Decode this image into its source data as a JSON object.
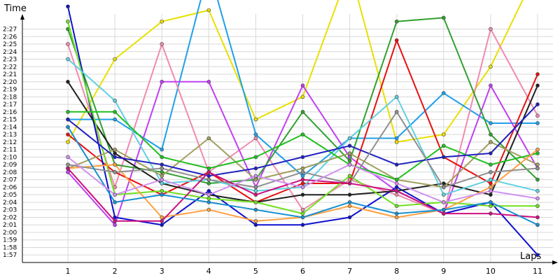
{
  "chart_data": {
    "type": "line",
    "xlabel": "Laps",
    "ylabel": "Time",
    "ylim": [
      "1:56",
      "2:29"
    ],
    "grid": true,
    "legend": "none",
    "x": [
      1,
      2,
      3,
      4,
      5,
      6,
      7,
      8,
      9,
      10,
      11
    ],
    "yticks": [
      "1:57",
      "1:58",
      "1:59",
      "2:00",
      "2:01",
      "2:02",
      "2:03",
      "2:04",
      "2:05",
      "2:06",
      "2:07",
      "2:08",
      "2:09",
      "2:10",
      "2:11",
      "2:12",
      "2:13",
      "2:14",
      "2:15",
      "2:16",
      "2:17",
      "2:18",
      "2:19",
      "2:20",
      "2:21",
      "2:22",
      "2:23",
      "2:24",
      "2:25",
      "2:26",
      "2:27"
    ],
    "series": [
      {
        "color": "#e8e000",
        "values": [
          "2:12",
          "2:23",
          "2:28",
          "2:29.5",
          "2:15",
          "2:18",
          "2:35",
          "2:12",
          "2:13",
          "2:22",
          "2:35"
        ]
      },
      {
        "color": "#20a0e8",
        "values": [
          "2:15",
          "2:15",
          "2:11",
          "2:35",
          "2:13",
          "2:07.5",
          "2:12.5",
          "2:12.5",
          "2:18.5",
          "2:14.5",
          "2:14.5"
        ]
      },
      {
        "color": "#f08ab0",
        "values": [
          "2:25",
          "2:06",
          "2:25",
          "2:08",
          "2:12.5",
          "2:03",
          "2:07",
          "2:05",
          "2:02.5",
          "2:27",
          "2:15.5"
        ]
      },
      {
        "color": "#c040f0",
        "values": [
          "2:08",
          "2:01",
          "2:20",
          "2:20",
          "2:06",
          "2:19.5",
          "2:10",
          "2:05.5",
          "2:02.5",
          "2:19.5",
          "2:08.5"
        ]
      },
      {
        "color": "#30a030",
        "values": [
          "2:27",
          "2:09",
          "2:08",
          "2:06.5",
          "2:07",
          "2:16",
          "2:09.5",
          "2:28",
          "2:28.5",
          "2:13",
          "2:07"
        ]
      },
      {
        "color": "#e81010",
        "values": [
          "2:13",
          "2:08",
          "2:05",
          "2:08",
          "2:04",
          "2:06.5",
          "2:06.5",
          "2:25.5",
          "2:10",
          "2:06.5",
          "2:21"
        ]
      },
      {
        "color": "#1010d0",
        "values": [
          "2:30",
          "2:02",
          "2:01",
          "2:05.5",
          "2:01",
          "2:01",
          "2:02",
          "2:06",
          "2:02.5",
          "2:04",
          "1:57"
        ]
      },
      {
        "color": "#202020",
        "values": [
          "2:20",
          "2:10.5",
          "2:06.5",
          "2:05",
          "2:04",
          "2:05",
          "2:05",
          "2:05.5",
          "2:06.5",
          "2:05",
          "2:19.5"
        ]
      },
      {
        "color": "#70e020",
        "values": [
          "2:28",
          "2:05",
          "2:05.5",
          "2:04.5",
          "2:04",
          "2:02.5",
          "2:07.5",
          "2:03.5",
          "2:04",
          "2:03.5",
          "2:03.5"
        ]
      },
      {
        "color": "#60d0e0",
        "values": [
          "2:23",
          "2:17.5",
          "2:06.5",
          "2:07",
          "2:05.5",
          "2:06",
          "2:12.5",
          "2:18",
          "2:05",
          "2:07",
          "2:05.5"
        ]
      },
      {
        "color": "#a0a060",
        "values": [
          "2:08.5",
          "2:11",
          "2:07.5",
          "2:12.5",
          "2:07",
          "2:08.5",
          "2:10.5",
          "2:07",
          "2:06",
          "2:12",
          "2:09"
        ]
      },
      {
        "color": "#20c020",
        "values": [
          "2:16",
          "2:16",
          "2:10",
          "2:08.5",
          "2:10",
          "2:13",
          "2:09",
          "2:07",
          "2:11.5",
          "2:09",
          "2:10.5"
        ]
      },
      {
        "color": "#2020c0",
        "values": [
          "2:15",
          "2:10",
          "2:09",
          "2:07.5",
          "2:08.5",
          "2:10",
          "2:11.5",
          "2:09",
          "2:10",
          "2:10.5",
          "2:17"
        ]
      },
      {
        "color": "#ffa040",
        "values": [
          "2:08.5",
          "2:09",
          "2:02",
          "2:03",
          "2:01.5",
          "2:02",
          "2:03.5",
          "2:02",
          "2:03",
          "2:06",
          "2:11"
        ]
      },
      {
        "color": "#909090",
        "values": [
          "2:09",
          "2:08",
          "2:08.5",
          "2:07",
          "2:06",
          "2:08",
          "2:06.5",
          "2:16",
          "2:06",
          "2:08",
          "2:08.5"
        ]
      },
      {
        "color": "#cc1080",
        "values": [
          "2:08.5",
          "2:01.5",
          "2:01.5",
          "2:08",
          "2:05",
          "2:07",
          "2:06.5",
          "2:05.5",
          "2:02.5",
          "2:02.5",
          "2:02"
        ]
      },
      {
        "color": "#1890d0",
        "values": [
          "2:14",
          "2:04",
          "2:05",
          "2:04",
          "2:03",
          "2:02",
          "2:04",
          "2:02.5",
          "2:03",
          "2:04",
          "2:01"
        ]
      },
      {
        "color": "#d090f0",
        "values": [
          "2:10",
          "2:05",
          "2:07",
          "2:05",
          "2:07.5",
          "2:06",
          "2:09",
          "2:06.5",
          "2:04",
          "2:05.5",
          "2:04.5"
        ]
      }
    ]
  }
}
